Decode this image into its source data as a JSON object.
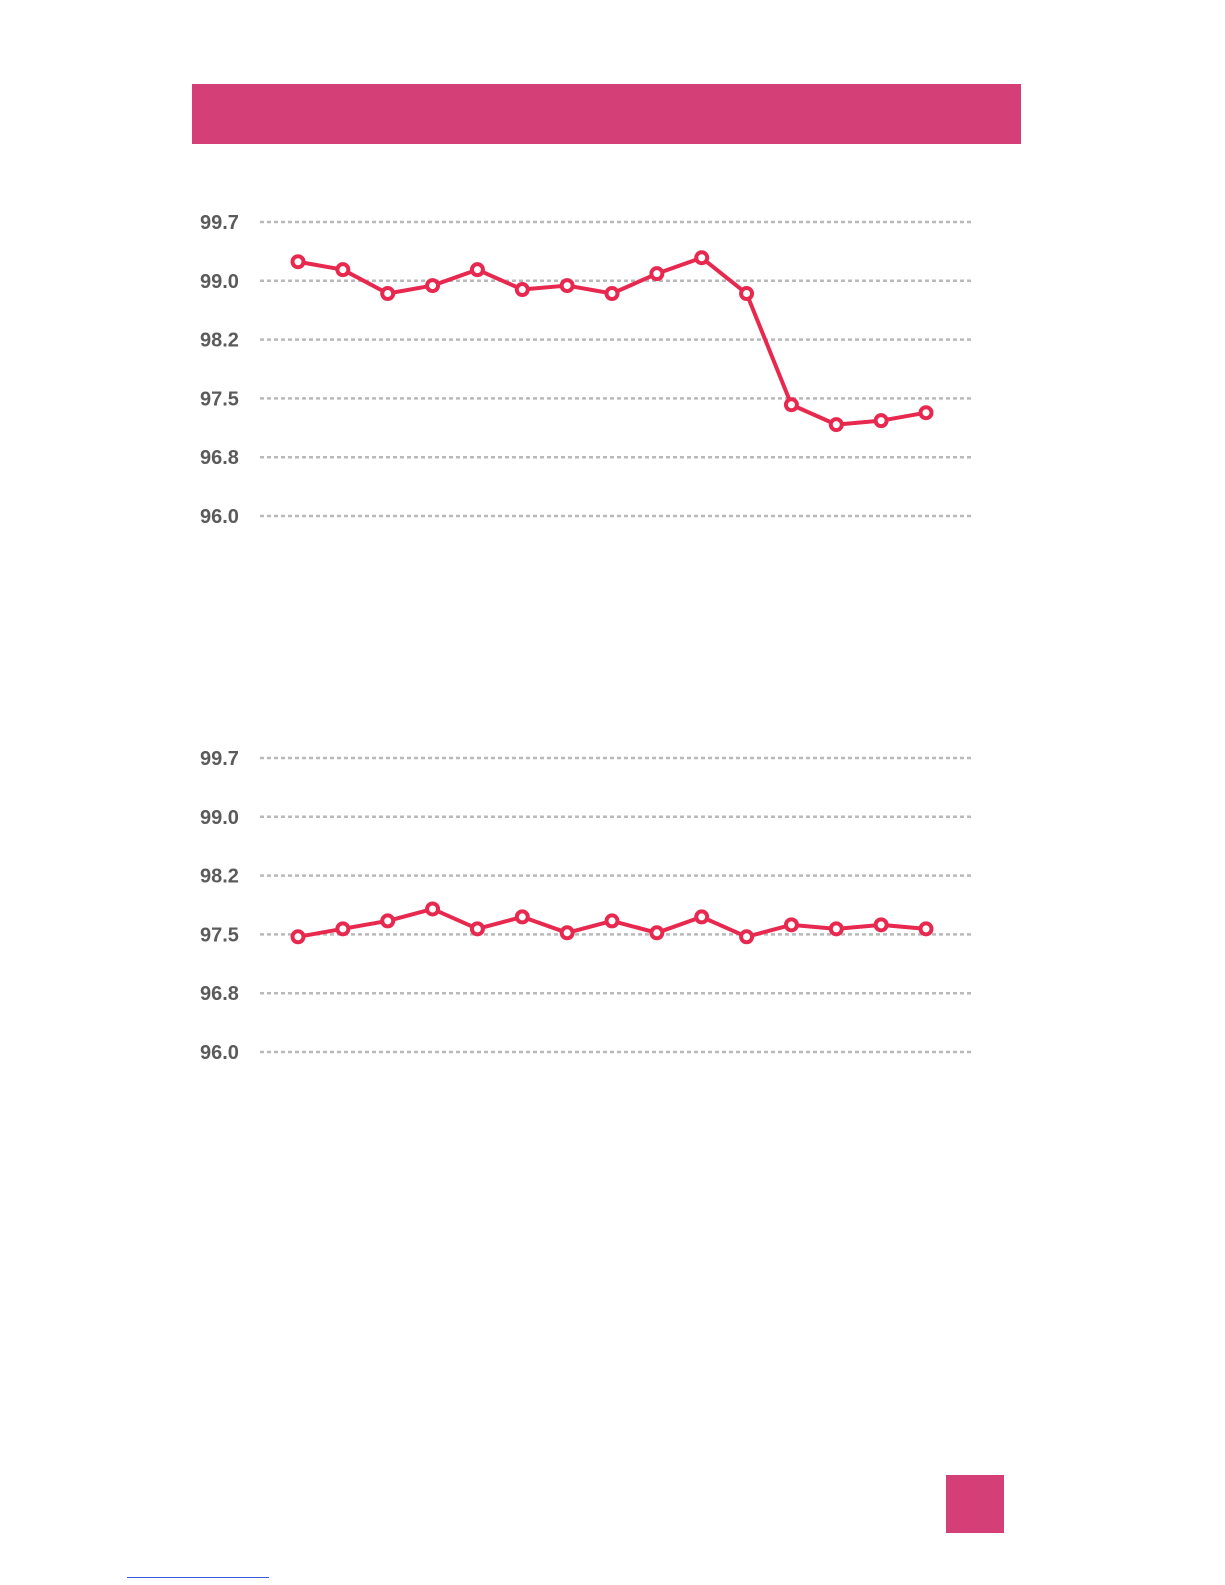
{
  "colors": {
    "accent": "#d43f77",
    "series": "#e8294f"
  },
  "chart_data": [
    {
      "type": "line",
      "title": "",
      "xlabel": "",
      "ylabel": "",
      "ylim": [
        96.0,
        99.7
      ],
      "yticks": [
        "99.7",
        "99.0",
        "98.2",
        "97.5",
        "96.8",
        "96.0"
      ],
      "grid": true,
      "x": [
        1,
        2,
        3,
        4,
        5,
        6,
        7,
        8,
        9,
        10,
        11,
        12,
        13,
        14,
        15
      ],
      "series": [
        {
          "values": [
            99.2,
            99.1,
            98.8,
            98.9,
            99.1,
            98.85,
            98.9,
            98.8,
            99.05,
            99.25,
            98.8,
            97.4,
            97.15,
            97.2,
            97.3
          ]
        }
      ]
    },
    {
      "type": "line",
      "title": "",
      "xlabel": "",
      "ylabel": "",
      "ylim": [
        96.0,
        99.7
      ],
      "yticks": [
        "99.7",
        "99.0",
        "98.2",
        "97.5",
        "96.8",
        "96.0"
      ],
      "grid": true,
      "x": [
        1,
        2,
        3,
        4,
        5,
        6,
        7,
        8,
        9,
        10,
        11,
        12,
        13,
        14,
        15
      ],
      "series": [
        {
          "values": [
            97.45,
            97.55,
            97.65,
            97.8,
            97.55,
            97.7,
            97.5,
            97.65,
            97.5,
            97.7,
            97.45,
            97.6,
            97.55,
            97.6,
            97.55
          ]
        }
      ]
    }
  ]
}
